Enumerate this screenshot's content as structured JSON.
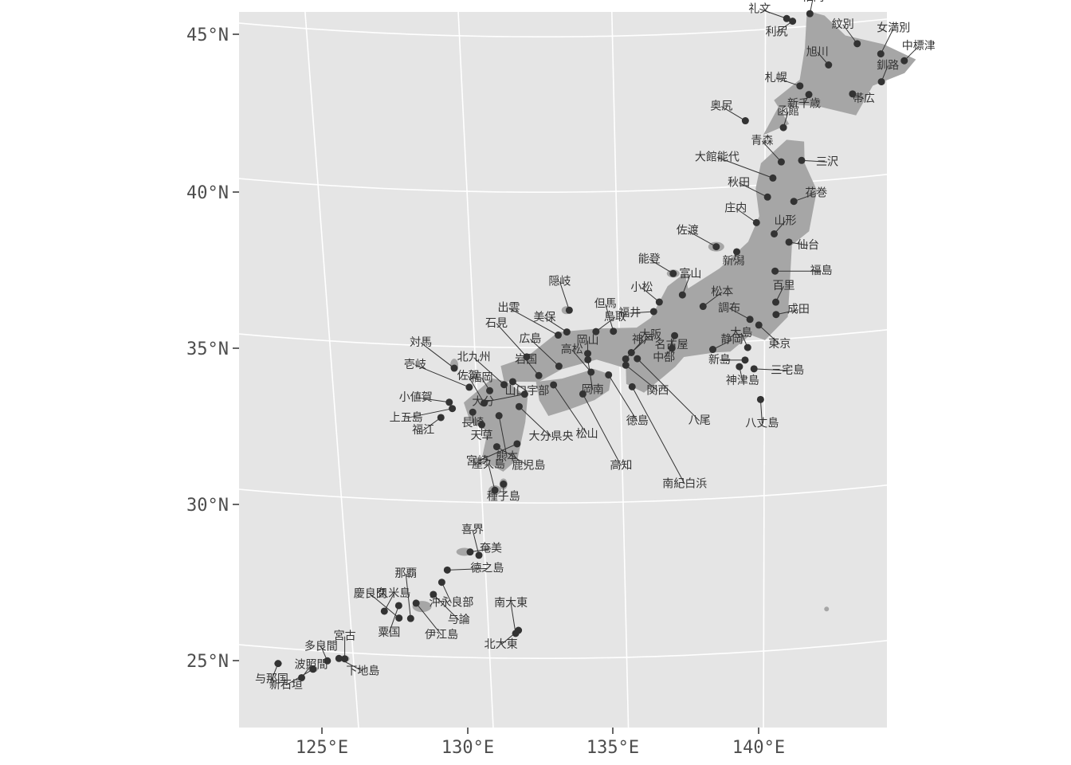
{
  "map": {
    "lat_ticks": [
      "45°N",
      "40°N",
      "35°N",
      "30°N",
      "25°N"
    ],
    "lon_ticks": [
      "125°E",
      "130°E",
      "135°E",
      "140°E"
    ],
    "colors": {
      "panel": "#e5e5e5",
      "land": "#a6a6a6",
      "point": "#333333",
      "grid": "#ffffff"
    },
    "airports": [
      {
        "name": "稚内",
        "lon": 141.8,
        "lat": 45.4
      },
      {
        "name": "礼文",
        "lon": 141.0,
        "lat": 45.3
      },
      {
        "name": "利尻",
        "lon": 141.2,
        "lat": 45.2
      },
      {
        "name": "紋別",
        "lon": 143.4,
        "lat": 44.3
      },
      {
        "name": "女満別",
        "lon": 144.2,
        "lat": 43.9
      },
      {
        "name": "中標津",
        "lon": 145.0,
        "lat": 43.6
      },
      {
        "name": "旭川",
        "lon": 142.4,
        "lat": 43.7
      },
      {
        "name": "釧路",
        "lon": 144.2,
        "lat": 43.0
      },
      {
        "name": "札幌",
        "lon": 141.4,
        "lat": 43.1
      },
      {
        "name": "新千歳",
        "lon": 141.7,
        "lat": 42.8
      },
      {
        "name": "帯広",
        "lon": 143.2,
        "lat": 42.7
      },
      {
        "name": "奥尻",
        "lon": 139.5,
        "lat": 42.1
      },
      {
        "name": "函館",
        "lon": 140.8,
        "lat": 41.8
      },
      {
        "name": "青森",
        "lon": 140.7,
        "lat": 40.7
      },
      {
        "name": "三沢",
        "lon": 141.4,
        "lat": 40.7
      },
      {
        "name": "大館能代",
        "lon": 140.4,
        "lat": 40.2
      },
      {
        "name": "秋田",
        "lon": 140.2,
        "lat": 39.6
      },
      {
        "name": "花巻",
        "lon": 141.1,
        "lat": 39.4
      },
      {
        "name": "庄内",
        "lon": 139.8,
        "lat": 38.8
      },
      {
        "name": "山形",
        "lon": 140.4,
        "lat": 38.4
      },
      {
        "name": "仙台",
        "lon": 140.9,
        "lat": 38.1
      },
      {
        "name": "佐渡",
        "lon": 138.4,
        "lat": 38.1
      },
      {
        "name": "新潟",
        "lon": 139.1,
        "lat": 37.9
      },
      {
        "name": "能登",
        "lon": 136.9,
        "lat": 37.3
      },
      {
        "name": "富山",
        "lon": 137.2,
        "lat": 36.6
      },
      {
        "name": "福島",
        "lon": 140.4,
        "lat": 37.2
      },
      {
        "name": "小松",
        "lon": 136.4,
        "lat": 36.4
      },
      {
        "name": "松本",
        "lon": 137.9,
        "lat": 36.2
      },
      {
        "name": "百里",
        "lon": 140.4,
        "lat": 36.2
      },
      {
        "name": "福井",
        "lon": 136.2,
        "lat": 36.1
      },
      {
        "name": "名古屋",
        "lon": 136.9,
        "lat": 35.3
      },
      {
        "name": "調布",
        "lon": 139.5,
        "lat": 35.7
      },
      {
        "name": "成田",
        "lon": 140.4,
        "lat": 35.8
      },
      {
        "name": "東京",
        "lon": 139.8,
        "lat": 35.5
      },
      {
        "name": "静岡",
        "lon": 138.2,
        "lat": 34.8
      },
      {
        "name": "大島",
        "lon": 139.4,
        "lat": 34.8
      },
      {
        "name": "新島",
        "lon": 139.3,
        "lat": 34.4
      },
      {
        "name": "三宅島",
        "lon": 139.6,
        "lat": 34.1
      },
      {
        "name": "神津島",
        "lon": 139.1,
        "lat": 34.2
      },
      {
        "name": "八丈島",
        "lon": 139.8,
        "lat": 33.1
      },
      {
        "name": "隠岐",
        "lon": 133.3,
        "lat": 36.2
      },
      {
        "name": "但馬",
        "lon": 134.8,
        "lat": 35.5
      },
      {
        "name": "鳥取",
        "lon": 134.2,
        "lat": 35.5
      },
      {
        "name": "美保",
        "lon": 133.2,
        "lat": 35.5
      },
      {
        "name": "出雲",
        "lon": 132.9,
        "lat": 35.4
      },
      {
        "name": "石見",
        "lon": 131.8,
        "lat": 34.7
      },
      {
        "name": "広島",
        "lon": 132.9,
        "lat": 34.4
      },
      {
        "name": "岡山",
        "lon": 133.9,
        "lat": 34.8
      },
      {
        "name": "神戸",
        "lon": 135.2,
        "lat": 34.6
      },
      {
        "name": "大阪",
        "lon": 135.4,
        "lat": 34.8
      },
      {
        "name": "中部",
        "lon": 136.8,
        "lat": 34.9
      },
      {
        "name": "関西",
        "lon": 135.2,
        "lat": 34.4
      },
      {
        "name": "八尾",
        "lon": 135.6,
        "lat": 34.6
      },
      {
        "name": "高松",
        "lon": 134.0,
        "lat": 34.2
      },
      {
        "name": "岡南",
        "lon": 133.9,
        "lat": 34.6
      },
      {
        "name": "徳島",
        "lon": 134.6,
        "lat": 34.1
      },
      {
        "name": "松山",
        "lon": 132.7,
        "lat": 33.8
      },
      {
        "name": "高知",
        "lon": 133.7,
        "lat": 33.5
      },
      {
        "name": "南紀白浜",
        "lon": 135.4,
        "lat": 33.7
      },
      {
        "name": "岩国",
        "lon": 132.2,
        "lat": 34.1
      },
      {
        "name": "山口宇部",
        "lon": 131.3,
        "lat": 33.9
      },
      {
        "name": "北九州",
        "lon": 131.0,
        "lat": 33.8
      },
      {
        "name": "福岡",
        "lon": 130.5,
        "lat": 33.6
      },
      {
        "name": "佐賀",
        "lon": 130.3,
        "lat": 33.2
      },
      {
        "name": "対馬",
        "lon": 129.3,
        "lat": 34.3
      },
      {
        "name": "壱岐",
        "lon": 129.8,
        "lat": 33.7
      },
      {
        "name": "小値賀",
        "lon": 129.1,
        "lat": 33.2
      },
      {
        "name": "上五島",
        "lon": 129.2,
        "lat": 33.0
      },
      {
        "name": "福江",
        "lon": 128.8,
        "lat": 32.7
      },
      {
        "name": "長崎",
        "lon": 129.9,
        "lat": 32.9
      },
      {
        "name": "熊本",
        "lon": 130.8,
        "lat": 32.8
      },
      {
        "name": "大分",
        "lon": 131.7,
        "lat": 33.5
      },
      {
        "name": "天草",
        "lon": 130.2,
        "lat": 32.5
      },
      {
        "name": "大分県央",
        "lon": 131.5,
        "lat": 33.1
      },
      {
        "name": "宮崎",
        "lon": 131.4,
        "lat": 31.9
      },
      {
        "name": "鹿児島",
        "lon": 130.7,
        "lat": 31.8
      },
      {
        "name": "種子島",
        "lon": 130.9,
        "lat": 30.6
      },
      {
        "name": "屋久島",
        "lon": 130.6,
        "lat": 30.4
      },
      {
        "name": "奄美",
        "lon": 129.7,
        "lat": 28.4
      },
      {
        "name": "喜界",
        "lon": 130.0,
        "lat": 28.3
      },
      {
        "name": "徳之島",
        "lon": 128.9,
        "lat": 27.8
      },
      {
        "name": "沖永良部",
        "lon": 128.7,
        "lat": 27.4
      },
      {
        "name": "与論",
        "lon": 128.4,
        "lat": 27.0
      },
      {
        "name": "伊江島",
        "lon": 127.8,
        "lat": 26.7
      },
      {
        "name": "那覇",
        "lon": 127.6,
        "lat": 26.2
      },
      {
        "name": "粟国",
        "lon": 127.2,
        "lat": 26.6
      },
      {
        "name": "慶良間",
        "lon": 127.2,
        "lat": 26.2
      },
      {
        "name": "久米島",
        "lon": 126.7,
        "lat": 26.4
      },
      {
        "name": "北大東",
        "lon": 131.3,
        "lat": 25.9
      },
      {
        "name": "南大東",
        "lon": 131.2,
        "lat": 25.8
      },
      {
        "name": "下地島",
        "lon": 125.1,
        "lat": 24.8
      },
      {
        "name": "宮古",
        "lon": 125.3,
        "lat": 24.8
      },
      {
        "name": "多良間",
        "lon": 124.7,
        "lat": 24.7
      },
      {
        "name": "与那国",
        "lon": 123.0,
        "lat": 24.5
      },
      {
        "name": "新石垣",
        "lon": 124.2,
        "lat": 24.4
      },
      {
        "name": "波照間",
        "lon": 123.8,
        "lat": 24.1
      }
    ]
  }
}
